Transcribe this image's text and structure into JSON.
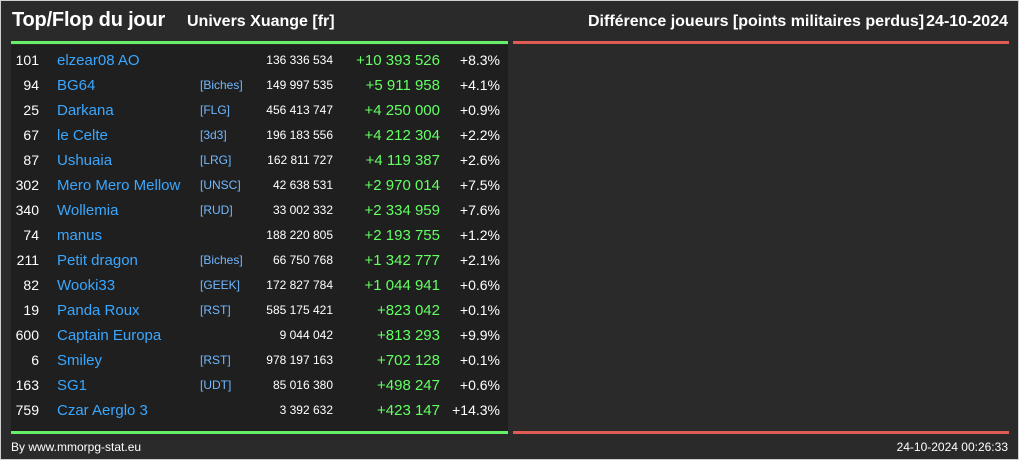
{
  "header": {
    "title": "Top/Flop du jour",
    "universe": "Univers Xuange [fr]",
    "metric": "Différence joueurs [points militaires perdus]",
    "date": "24-10-2024"
  },
  "table": {
    "rows": [
      {
        "rank": "101",
        "name": "elzear08 AO",
        "tag": "",
        "points": "136 336 534",
        "diff": "+10 393 526",
        "pct": "+8.3%"
      },
      {
        "rank": "94",
        "name": "BG64",
        "tag": "[Biches]",
        "points": "149 997 535",
        "diff": "+5 911 958",
        "pct": "+4.1%"
      },
      {
        "rank": "25",
        "name": "Darkana",
        "tag": "[FLG]",
        "points": "456 413 747",
        "diff": "+4 250 000",
        "pct": "+0.9%"
      },
      {
        "rank": "67",
        "name": "le Celte",
        "tag": "[3d3]",
        "points": "196 183 556",
        "diff": "+4 212 304",
        "pct": "+2.2%"
      },
      {
        "rank": "87",
        "name": "Ushuaia",
        "tag": "[LRG]",
        "points": "162 811 727",
        "diff": "+4 119 387",
        "pct": "+2.6%"
      },
      {
        "rank": "302",
        "name": "Mero Mero Mellow",
        "tag": "[UNSC]",
        "points": "42 638 531",
        "diff": "+2 970 014",
        "pct": "+7.5%"
      },
      {
        "rank": "340",
        "name": "Wollemia",
        "tag": "[RUD]",
        "points": "33 002 332",
        "diff": "+2 334 959",
        "pct": "+7.6%"
      },
      {
        "rank": "74",
        "name": "manus",
        "tag": "",
        "points": "188 220 805",
        "diff": "+2 193 755",
        "pct": "+1.2%"
      },
      {
        "rank": "211",
        "name": "Petit dragon",
        "tag": "[Biches]",
        "points": "66 750 768",
        "diff": "+1 342 777",
        "pct": "+2.1%"
      },
      {
        "rank": "82",
        "name": "Wooki33",
        "tag": "[GEEK]",
        "points": "172 827 784",
        "diff": "+1 044 941",
        "pct": "+0.6%"
      },
      {
        "rank": "19",
        "name": "Panda Roux",
        "tag": "[RST]",
        "points": "585 175 421",
        "diff": "+823 042",
        "pct": "+0.1%"
      },
      {
        "rank": "600",
        "name": "Captain Europa",
        "tag": "",
        "points": "9 044 042",
        "diff": "+813 293",
        "pct": "+9.9%"
      },
      {
        "rank": "6",
        "name": "Smiley",
        "tag": "[RST]",
        "points": "978 197 163",
        "diff": "+702 128",
        "pct": "+0.1%"
      },
      {
        "rank": "163",
        "name": "SG1",
        "tag": "[UDT]",
        "points": "85 016 380",
        "diff": "+498 247",
        "pct": "+0.6%"
      },
      {
        "rank": "759",
        "name": "Czar Aerglo 3",
        "tag": "",
        "points": "3 392 632",
        "diff": "+423 147",
        "pct": "+14.3%"
      }
    ]
  },
  "footer": {
    "source": "By www.mmorpg-stat.eu",
    "timestamp": "24-10-2024 00:26:33"
  },
  "colors": {
    "background": "#2a2a2a",
    "panel": "#1f1f1f",
    "player_link": "#3aa7ff",
    "tag": "#72b8ff",
    "positive": "#63ff63",
    "top_line": "#66f06a",
    "flop_line": "#e15b55"
  }
}
